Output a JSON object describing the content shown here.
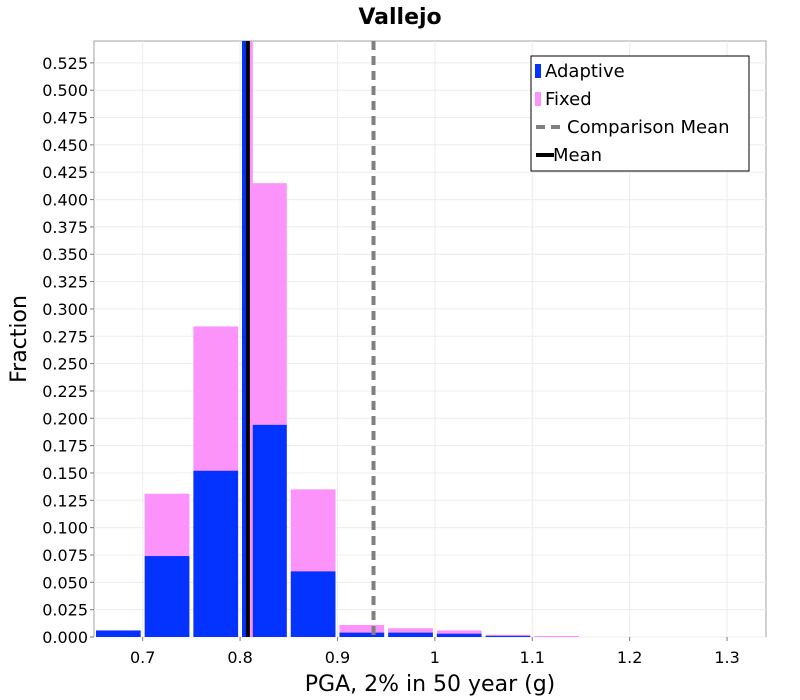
{
  "chart_data": {
    "type": "bar",
    "title": "Vallejo",
    "xlabel": "PGA, 2% in 50 year (g)",
    "ylabel": "Fraction",
    "xlim": [
      0.65,
      1.34
    ],
    "ylim": [
      0,
      0.545
    ],
    "xticks": [
      "0.7",
      "0.8",
      "0.9",
      "1",
      "1.1",
      "1.2",
      "1.3"
    ],
    "yticks": [
      "0.000",
      "0.025",
      "0.050",
      "0.075",
      "0.100",
      "0.125",
      "0.150",
      "0.175",
      "0.200",
      "0.225",
      "0.250",
      "0.275",
      "0.300",
      "0.325",
      "0.350",
      "0.375",
      "0.400",
      "0.425",
      "0.450",
      "0.475",
      "0.500",
      "0.525"
    ],
    "grid": true,
    "legend_position": "top-right",
    "bin_width": 0.05,
    "bins": [
      {
        "x_start": 0.65,
        "adaptive": 0.006,
        "fixed": 0.0
      },
      {
        "x_start": 0.7,
        "adaptive": 0.074,
        "fixed": 0.131
      },
      {
        "x_start": 0.75,
        "adaptive": 0.152,
        "fixed": 0.284
      },
      {
        "x_start": 0.8,
        "adaptive": 0.194,
        "fixed": 0.415
      },
      {
        "x_start": 0.85,
        "adaptive": 0.06,
        "fixed": 0.135
      },
      {
        "x_start": 0.9,
        "adaptive": 0.004,
        "fixed": 0.011
      },
      {
        "x_start": 0.95,
        "adaptive": 0.004,
        "fixed": 0.008
      },
      {
        "x_start": 1.0,
        "adaptive": 0.003,
        "fixed": 0.006
      },
      {
        "x_start": 1.05,
        "adaptive": 0.001,
        "fixed": 0.002
      },
      {
        "x_start": 1.1,
        "adaptive": 0.0,
        "fixed": 0.001
      }
    ],
    "series": [
      {
        "name": "Adaptive",
        "color": "#0433ff"
      },
      {
        "name": "Fixed",
        "color": "#fb93fb"
      }
    ],
    "lines": [
      {
        "name": "Comparison Mean",
        "x": 0.937,
        "color": "#808080",
        "style": "dashed"
      },
      {
        "name": "Mean",
        "x": 0.808,
        "color": "#000000",
        "style": "solid"
      },
      {
        "name": "Adaptive mean",
        "x": 0.804,
        "color": "#0433ff",
        "style": "solid"
      },
      {
        "name": "Fixed mean",
        "x": 0.811,
        "color": "#fb93fb",
        "style": "solid"
      }
    ],
    "legend": [
      "Adaptive",
      "Fixed",
      "Comparison Mean",
      "Mean"
    ]
  }
}
